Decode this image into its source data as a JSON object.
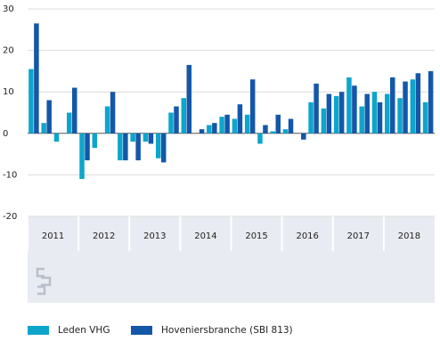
{
  "chart_data": {
    "type": "bar",
    "categories": [
      "2011",
      "2012",
      "2013",
      "2014",
      "2015",
      "2016",
      "2017",
      "2018"
    ],
    "series": [
      {
        "name": "Leden VHG",
        "color": "#0ea5cb",
        "values": [
          [
            15.5,
            2.5,
            -2,
            5
          ],
          [
            -11,
            -3.5,
            6.5,
            -6.5
          ],
          [
            -2,
            -2,
            -6,
            5
          ],
          [
            8.5,
            0,
            2,
            4
          ],
          [
            3.5,
            4.5,
            -2.5,
            0.5
          ],
          [
            1,
            0,
            7.5,
            6
          ],
          [
            9,
            13.5,
            6.5,
            10
          ],
          [
            9.5,
            8.5,
            13,
            7.5
          ]
        ]
      },
      {
        "name": "Hoveniersbranche (SBI 813)",
        "color": "#1457a8",
        "values": [
          [
            26.5,
            8,
            0,
            11
          ],
          [
            -6.5,
            0,
            10,
            -6.5
          ],
          [
            -6.5,
            -2.5,
            -7,
            6.5
          ],
          [
            16.5,
            1,
            2.5,
            4.5
          ],
          [
            7,
            13,
            2,
            4.5
          ],
          [
            3.5,
            -1.5,
            12,
            9.5
          ],
          [
            10,
            11.5,
            9.5,
            7.5
          ],
          [
            13.5,
            12.5,
            14.5,
            15
          ]
        ]
      }
    ],
    "ylim": [
      -20,
      30
    ],
    "yticks": [
      -20,
      -10,
      0,
      10,
      20,
      30
    ],
    "grid": true,
    "legend": "bottom"
  }
}
